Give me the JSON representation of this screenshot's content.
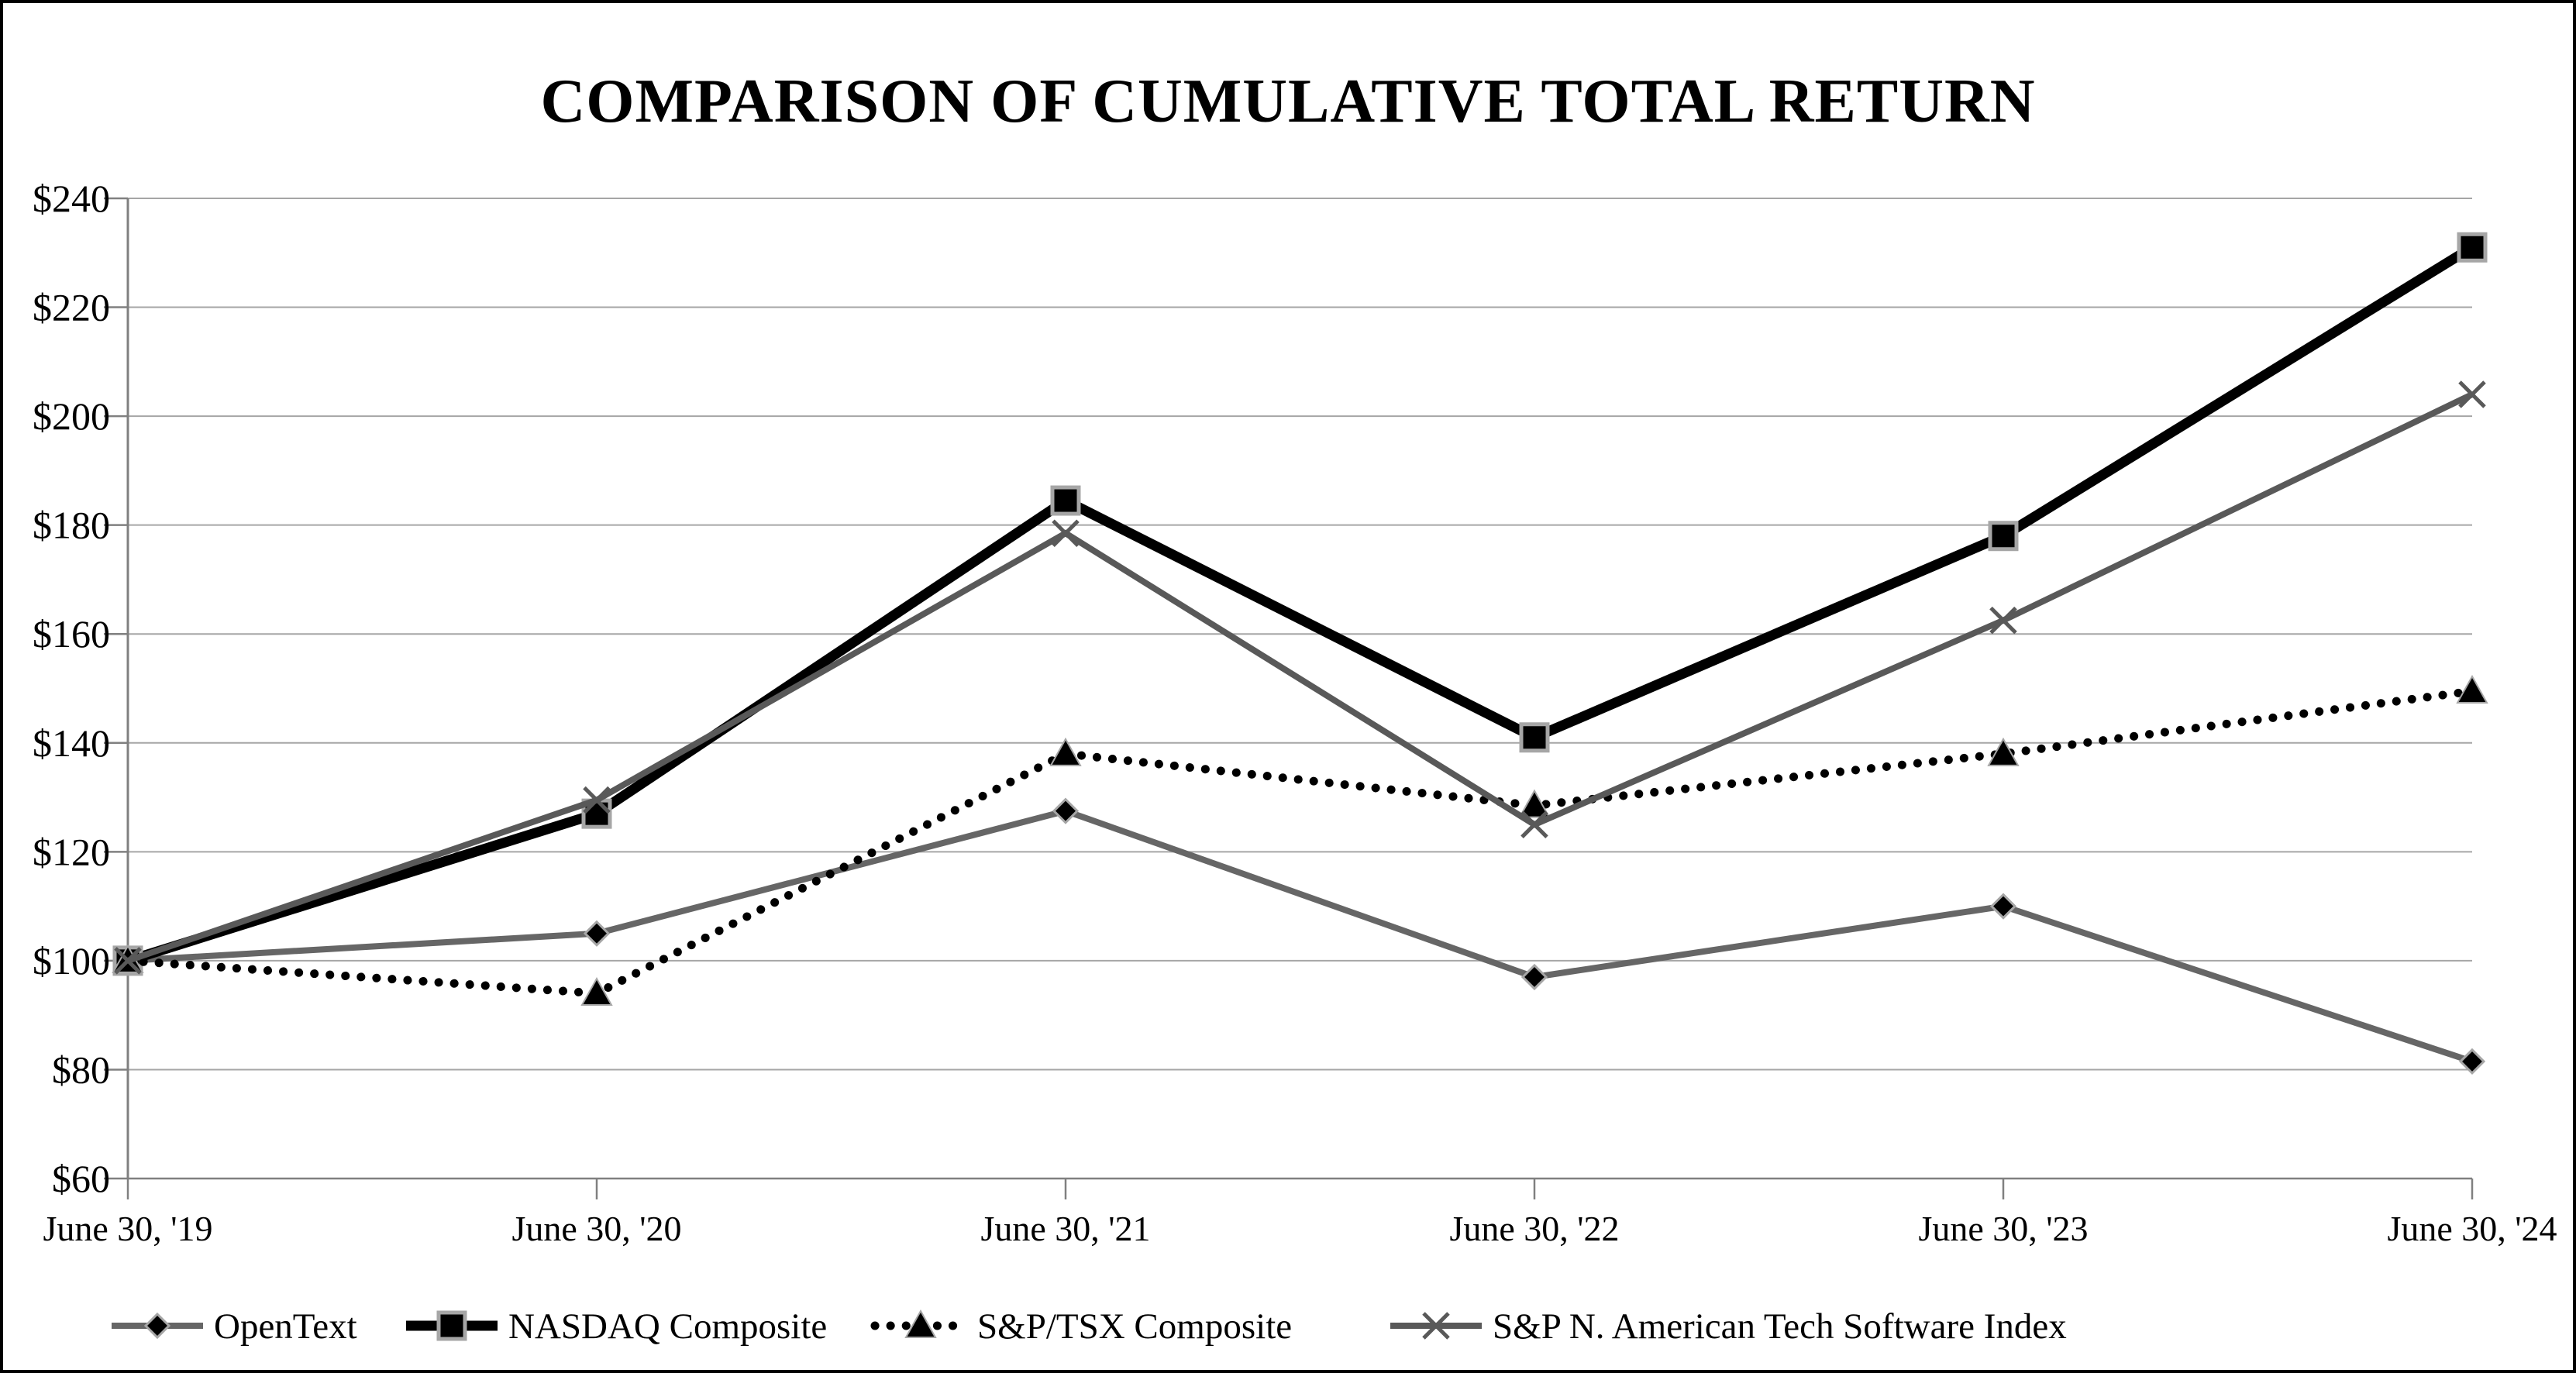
{
  "title": "COMPARISON OF CUMULATIVE TOTAL RETURN",
  "chart_data": {
    "type": "line",
    "categories": [
      "June 30, '19",
      "June 30, '20",
      "June 30, '21",
      "June 30, '22",
      "June 30, '23",
      "June 30, '24"
    ],
    "series": [
      {
        "name": "OpenText",
        "values": [
          100,
          105,
          127.5,
          97,
          110,
          81.5
        ],
        "color": "#666666",
        "line": "solid",
        "line_width": 8,
        "marker": "diamond",
        "marker_color": "#000000"
      },
      {
        "name": "NASDAQ Composite",
        "values": [
          100,
          127,
          184.5,
          141,
          178,
          231
        ],
        "color": "#000000",
        "line": "solid",
        "line_width": 13,
        "marker": "square",
        "marker_color": "#000000"
      },
      {
        "name": "S&P/TSX Composite",
        "values": [
          100,
          94,
          138,
          128.5,
          138,
          149.5
        ],
        "color": "#000000",
        "line": "dotted",
        "line_width": 11,
        "marker": "triangle",
        "marker_color": "#000000"
      },
      {
        "name": "S&P N. American Tech Software Index",
        "values": [
          100,
          129.5,
          178.5,
          125,
          162.5,
          204
        ],
        "color": "#595959",
        "line": "solid",
        "line_width": 8,
        "marker": "x",
        "marker_color": "#595959"
      }
    ],
    "ylim": [
      60,
      240
    ],
    "ytick_step": 20,
    "ytick_labels": [
      "$60",
      "$80",
      "$100",
      "$120",
      "$140",
      "$160",
      "$180",
      "$200",
      "$220",
      "$240"
    ],
    "xlabel": "",
    "ylabel": "",
    "grid": "horizontal",
    "legend_position": "bottom",
    "colors": {
      "gridline": "#a6a6a6",
      "axis": "#808080",
      "marker_border": "#a6a6a6",
      "text": "#000000"
    }
  }
}
